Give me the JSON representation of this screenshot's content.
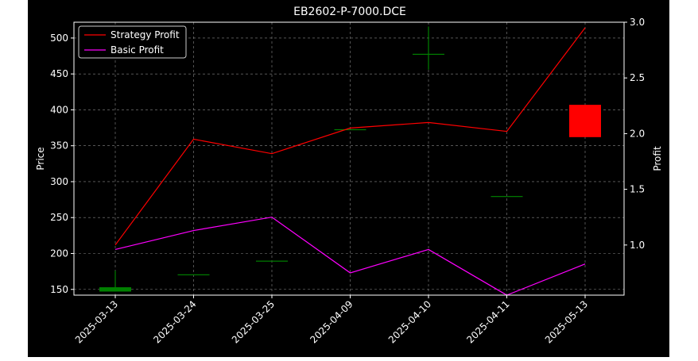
{
  "chart_data": {
    "type": "candlestick+line",
    "title": "EB2602-P-7000.DCE",
    "xlabel": "",
    "ylabel_left": "Price",
    "ylabel_right": "Profit",
    "categories": [
      "2025-03-13",
      "2025-03-24",
      "2025-03-25",
      "2025-04-09",
      "2025-04-10",
      "2025-04-11",
      "2025-05-13"
    ],
    "ylim_left": [
      142,
      522
    ],
    "yticks_left": [
      150,
      200,
      250,
      300,
      350,
      400,
      450,
      500
    ],
    "ylim_right": [
      0.55,
      3.0
    ],
    "yticks_right": [
      1.0,
      1.5,
      2.0,
      2.5,
      3.0
    ],
    "grid": true,
    "legend_position": "upper-left",
    "candles": [
      {
        "date": "2025-03-13",
        "open": 147,
        "close": 153,
        "high": 176,
        "low": 147
      },
      {
        "date": "2025-03-24",
        "open": 171,
        "close": 171,
        "high": 171,
        "low": 171
      },
      {
        "date": "2025-03-25",
        "open": 190,
        "close": 190,
        "high": 190,
        "low": 190
      },
      {
        "date": "2025-04-09",
        "open": 373,
        "close": 373,
        "high": 373,
        "low": 373
      },
      {
        "date": "2025-04-10",
        "open": 478,
        "close": 478,
        "high": 516,
        "low": 456
      },
      {
        "date": "2025-04-11",
        "open": 280,
        "close": 280,
        "high": 280,
        "low": 280
      },
      {
        "date": "2025-05-13",
        "open": 407,
        "close": 362,
        "high": 407,
        "low": 362
      }
    ],
    "series": [
      {
        "name": "Strategy Profit",
        "axis": "right",
        "color": "#ff0000",
        "values": [
          1.0,
          1.95,
          1.82,
          2.05,
          2.1,
          2.02,
          2.95
        ]
      },
      {
        "name": "Basic Profit",
        "axis": "right",
        "color": "#ff00ff",
        "values": [
          0.96,
          1.13,
          1.25,
          0.75,
          0.96,
          0.55,
          0.83
        ]
      }
    ],
    "colors": {
      "up": "#008000",
      "down": "#ff0000",
      "background": "#000000",
      "grid": "#888888"
    }
  }
}
